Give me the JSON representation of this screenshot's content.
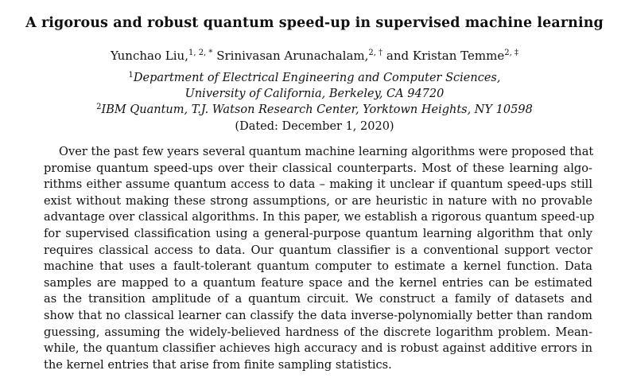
{
  "title": "A rigorous and robust quantum speed-up in supervised machine learning",
  "authors": [
    {
      "name": "Yunchao Liu,",
      "marks": "1, 2, *"
    },
    {
      "name": "Srinivasan Arunachalam,",
      "marks": "2, †"
    },
    {
      "name": "and Kristan Temme",
      "marks": "2, ‡"
    }
  ],
  "affiliations": [
    {
      "mark": "1",
      "text": "Department of Electrical Engineering and Computer Sciences,"
    },
    {
      "mark": "",
      "text": "University of California, Berkeley, CA 94720"
    },
    {
      "mark": "2",
      "text": "IBM Quantum, T.J. Watson Research Center, Yorktown Heights, NY 10598"
    }
  ],
  "dated": "(Dated: December 1, 2020)",
  "abstract_lines": [
    "Over the past few years several quantum machine learning algorithms were proposed that",
    "promise quantum speed-ups over their classical counterparts. Most of these learning algo-",
    "rithms either assume quantum access to data – making it unclear if quantum speed-ups still",
    "exist without making these strong assumptions, or are heuristic in nature with no provable",
    "advantage over classical algorithms. In this paper, we establish a rigorous quantum speed-up",
    "for supervised classification using a general-purpose quantum learning algorithm that only",
    "requires classical access to data. Our quantum classifier is a conventional support vector",
    "machine that uses a fault-tolerant quantum computer to estimate a kernel function. Data",
    "samples are mapped to a quantum feature space and the kernel entries can be estimated",
    "as the transition amplitude of a quantum circuit. We construct a family of datasets and",
    "show that no classical learner can classify the data inverse-polynomially better than random",
    "guessing, assuming the widely-believed hardness of the discrete logarithm problem. Mean-",
    "while, the quantum classifier achieves high accuracy and is robust against additive errors in",
    "the kernel entries that arise from finite sampling statistics."
  ]
}
